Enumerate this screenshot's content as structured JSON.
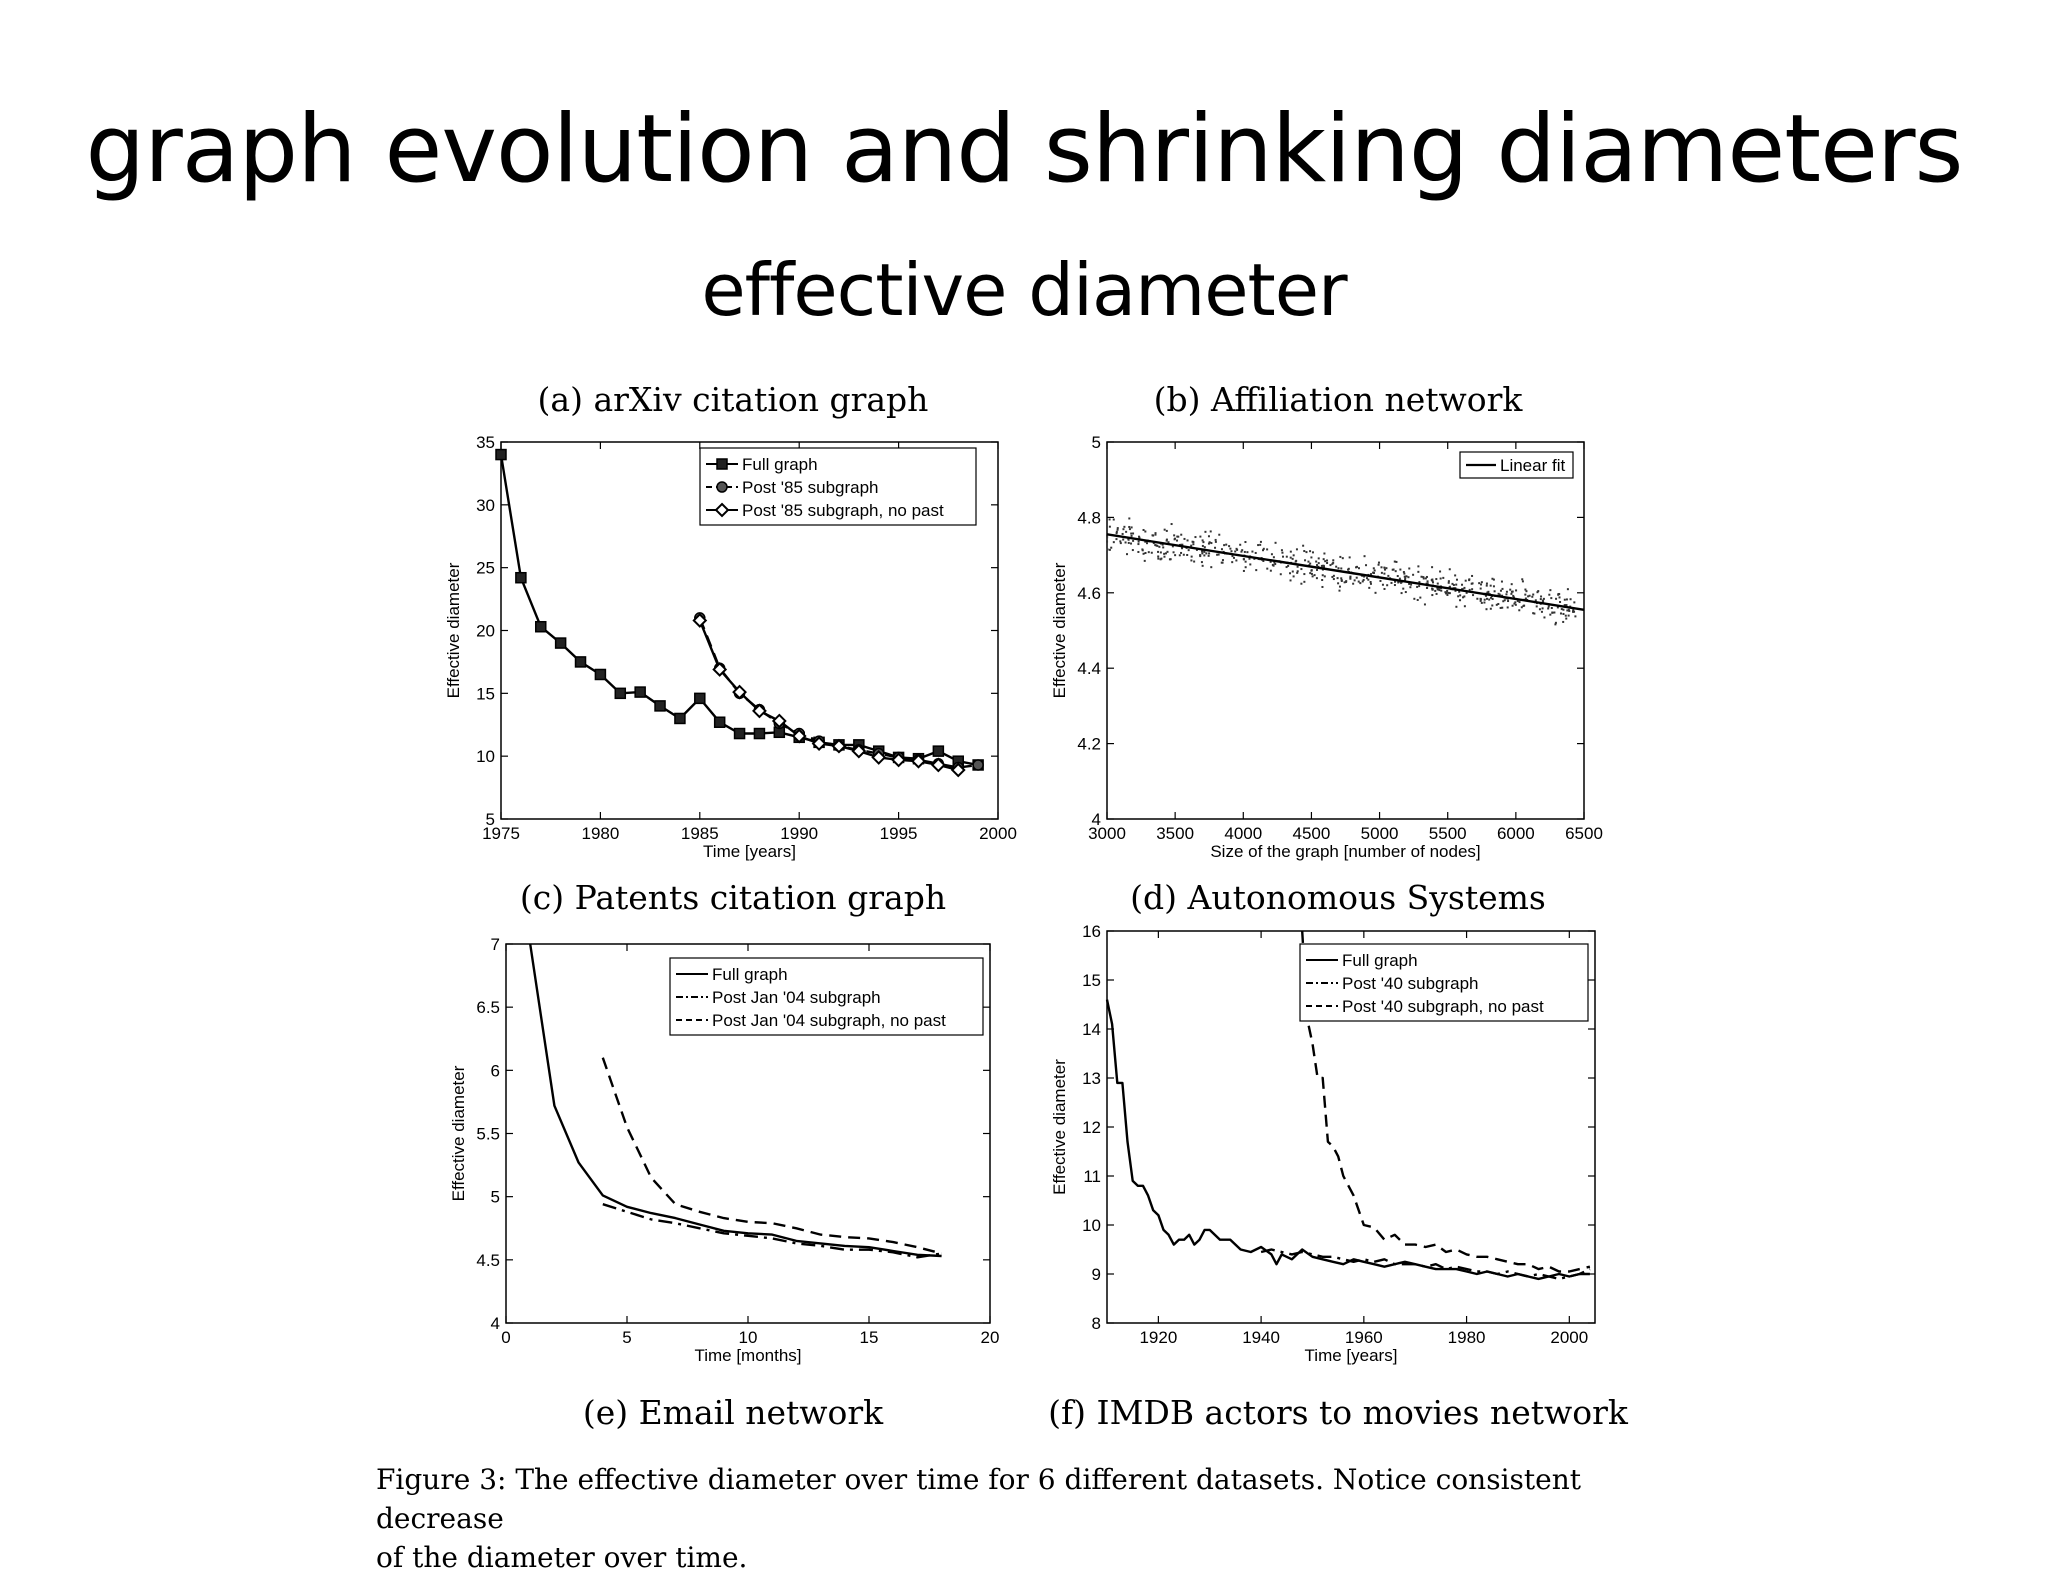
{
  "slide": {
    "title": "graph evolution and shrinking diameters",
    "subtitle": "effective diameter"
  },
  "figure": {
    "caption_line1": "Figure 3: The effective diameter over time for 6 different datasets. Notice consistent decrease",
    "caption_line2": "of the diameter over time."
  },
  "chart_data": [
    {
      "id": "a",
      "type": "line",
      "title": "(a) arXiv citation graph",
      "xlabel": "Time [years]",
      "ylabel": "Effective diameter",
      "xlim": [
        1975,
        2000
      ],
      "ylim": [
        5,
        35
      ],
      "xticks": [
        1975,
        1980,
        1985,
        1990,
        1995,
        2000
      ],
      "yticks": [
        5,
        10,
        15,
        20,
        25,
        30,
        35
      ],
      "legend_position": "top-right",
      "series": [
        {
          "name": "Full graph",
          "style": "solid",
          "marker": "square",
          "x": [
            1975,
            1976,
            1977,
            1978,
            1979,
            1980,
            1981,
            1982,
            1983,
            1984,
            1985,
            1986,
            1987,
            1988,
            1989,
            1990,
            1991,
            1992,
            1993,
            1994,
            1995,
            1996,
            1997,
            1998,
            1999
          ],
          "y": [
            34,
            24.2,
            20.3,
            19,
            17.5,
            16.5,
            15,
            15.1,
            14,
            13,
            14.6,
            12.7,
            11.8,
            11.8,
            11.9,
            11.5,
            11.1,
            10.9,
            10.9,
            10.4,
            9.9,
            9.8,
            10.4,
            9.6,
            9.3
          ]
        },
        {
          "name": "Post '85 subgraph",
          "style": "dashed",
          "marker": "circle",
          "x": [
            1985,
            1986,
            1987,
            1988,
            1989,
            1990,
            1991,
            1992,
            1993,
            1994,
            1995,
            1996,
            1997,
            1998,
            1999
          ],
          "y": [
            21,
            17,
            15,
            13.7,
            12.6,
            11.8,
            11.2,
            10.8,
            10.5,
            10.2,
            9.9,
            9.7,
            9.4,
            9.1,
            9.3
          ]
        },
        {
          "name": "Post '85 subgraph, no past",
          "style": "solid",
          "marker": "diamond",
          "x": [
            1985,
            1986,
            1987,
            1988,
            1989,
            1990,
            1991,
            1992,
            1993,
            1994,
            1995,
            1996,
            1997,
            1998
          ],
          "y": [
            20.8,
            16.9,
            15.1,
            13.6,
            12.8,
            11.6,
            11,
            10.8,
            10.4,
            9.9,
            9.7,
            9.6,
            9.3,
            8.9
          ]
        }
      ]
    },
    {
      "id": "b",
      "type": "scatter",
      "title": "(b) Affiliation network",
      "xlabel": "Size of the graph [number of nodes]",
      "ylabel": "Effective diameter",
      "xlim": [
        3000,
        6500
      ],
      "ylim": [
        4,
        5
      ],
      "xticks": [
        3000,
        3500,
        4000,
        4500,
        5000,
        5500,
        6000,
        6500
      ],
      "yticks": [
        4,
        4.2,
        4.4,
        4.6,
        4.8,
        5
      ],
      "legend_position": "top-right",
      "fit": {
        "name": "Linear fit",
        "x": [
          3000,
          6500
        ],
        "y": [
          4.755,
          4.555
        ]
      },
      "scatter": {
        "x_range": [
          3000,
          6450
        ],
        "trend": "linear-decreasing",
        "noise": 0.03
      }
    },
    {
      "id": "e",
      "type": "line",
      "title": "(c) Patents citation graph",
      "bottom_title": "(e) Email network",
      "xlabel": "Time [months]",
      "ylabel": "Effective diameter",
      "xlim": [
        0,
        20
      ],
      "ylim": [
        4,
        7
      ],
      "xticks": [
        0,
        5,
        10,
        15,
        20
      ],
      "yticks": [
        4,
        4.5,
        5,
        5.5,
        6,
        6.5,
        7
      ],
      "legend_position": "top-right",
      "series": [
        {
          "name": "Full graph",
          "style": "solid",
          "x": [
            1,
            2,
            3,
            4,
            5,
            6,
            7,
            8,
            9,
            10,
            11,
            12,
            13,
            14,
            15,
            16,
            17,
            18
          ],
          "y": [
            7,
            5.72,
            5.27,
            5.01,
            4.92,
            4.87,
            4.83,
            4.78,
            4.73,
            4.71,
            4.7,
            4.65,
            4.63,
            4.61,
            4.6,
            4.57,
            4.54,
            4.53
          ]
        },
        {
          "name": "Post Jan '04 subgraph",
          "style": "dashdot",
          "x": [
            4,
            5,
            6,
            7,
            8,
            9,
            10,
            11,
            12,
            13,
            14,
            15,
            16,
            17,
            18
          ],
          "y": [
            4.94,
            4.88,
            4.82,
            4.79,
            4.75,
            4.71,
            4.69,
            4.67,
            4.63,
            4.61,
            4.58,
            4.58,
            4.56,
            4.52,
            4.55
          ]
        },
        {
          "name": "Post Jan '04 subgraph, no past",
          "style": "dashed",
          "x": [
            4,
            5,
            6,
            7,
            8,
            9,
            10,
            11,
            12,
            13,
            14,
            15,
            16,
            17,
            18
          ],
          "y": [
            6.1,
            5.55,
            5.15,
            4.94,
            4.88,
            4.83,
            4.8,
            4.79,
            4.75,
            4.7,
            4.68,
            4.67,
            4.64,
            4.6,
            4.55
          ]
        }
      ]
    },
    {
      "id": "f",
      "type": "line",
      "title": "(d) Autonomous Systems",
      "bottom_title": "(f) IMDB actors to movies network",
      "xlabel": "Time [years]",
      "ylabel": "Effective diameter",
      "xlim": [
        1910,
        2005
      ],
      "ylim": [
        8,
        16
      ],
      "xticks": [
        1920,
        1940,
        1960,
        1980,
        2000
      ],
      "yticks": [
        8,
        9,
        10,
        11,
        12,
        13,
        14,
        15,
        16
      ],
      "legend_position": "top-right",
      "series": [
        {
          "name": "Full graph",
          "style": "solid",
          "x": [
            1910,
            1911,
            1912,
            1913,
            1914,
            1915,
            1916,
            1917,
            1918,
            1919,
            1920,
            1921,
            1922,
            1923,
            1924,
            1925,
            1926,
            1927,
            1928,
            1929,
            1930,
            1932,
            1934,
            1936,
            1938,
            1940,
            1942,
            1943,
            1944,
            1946,
            1948,
            1950,
            1952,
            1954,
            1956,
            1958,
            1960,
            1962,
            1964,
            1966,
            1968,
            1970,
            1972,
            1974,
            1976,
            1978,
            1980,
            1982,
            1984,
            1986,
            1988,
            1990,
            1992,
            1994,
            1996,
            1998,
            2000,
            2002,
            2004
          ],
          "y": [
            14.6,
            14.1,
            12.9,
            12.9,
            11.7,
            10.9,
            10.8,
            10.8,
            10.6,
            10.3,
            10.2,
            9.9,
            9.8,
            9.6,
            9.7,
            9.7,
            9.8,
            9.6,
            9.7,
            9.9,
            9.9,
            9.7,
            9.7,
            9.5,
            9.45,
            9.55,
            9.4,
            9.2,
            9.4,
            9.3,
            9.5,
            9.35,
            9.3,
            9.25,
            9.2,
            9.3,
            9.25,
            9.2,
            9.15,
            9.2,
            9.25,
            9.2,
            9.15,
            9.1,
            9.1,
            9.1,
            9.05,
            9.0,
            9.05,
            9.0,
            8.95,
            9.0,
            8.95,
            8.9,
            8.95,
            9.0,
            8.95,
            9.0,
            9.0
          ]
        },
        {
          "name": "Post '40 subgraph",
          "style": "dashdot",
          "x": [
            1940,
            1942,
            1944,
            1946,
            1948,
            1950,
            1952,
            1954,
            1956,
            1958,
            1960,
            1962,
            1964,
            1966,
            1968,
            1970,
            1972,
            1974,
            1976,
            1978,
            1980,
            1982,
            1984,
            1986,
            1988,
            1990,
            1992,
            1994,
            1996,
            1998,
            2000,
            2002,
            2004
          ],
          "y": [
            9.45,
            9.5,
            9.45,
            9.4,
            9.45,
            9.4,
            9.35,
            9.35,
            9.3,
            9.25,
            9.3,
            9.25,
            9.3,
            9.2,
            9.2,
            9.2,
            9.15,
            9.2,
            9.1,
            9.15,
            9.1,
            9.05,
            9.05,
            9.0,
            9.05,
            9.0,
            8.95,
            9.0,
            8.95,
            8.9,
            8.95,
            9.0,
            9.1
          ]
        },
        {
          "name": "Post '40 subgraph, no past",
          "style": "dashed",
          "x": [
            1948,
            1949,
            1950,
            1951,
            1952,
            1953,
            1954,
            1955,
            1956,
            1958,
            1960,
            1962,
            1964,
            1966,
            1968,
            1970,
            1972,
            1974,
            1976,
            1978,
            1980,
            1982,
            1984,
            1986,
            1988,
            1990,
            1992,
            1994,
            1996,
            1998,
            2000,
            2002,
            2004
          ],
          "y": [
            16,
            14.2,
            13.7,
            13,
            13,
            11.7,
            11.6,
            11.4,
            11.0,
            10.6,
            10.0,
            9.95,
            9.7,
            9.8,
            9.6,
            9.6,
            9.55,
            9.6,
            9.45,
            9.5,
            9.4,
            9.35,
            9.35,
            9.3,
            9.25,
            9.2,
            9.2,
            9.1,
            9.15,
            9.05,
            9.05,
            9.1,
            9.15
          ]
        }
      ]
    }
  ]
}
